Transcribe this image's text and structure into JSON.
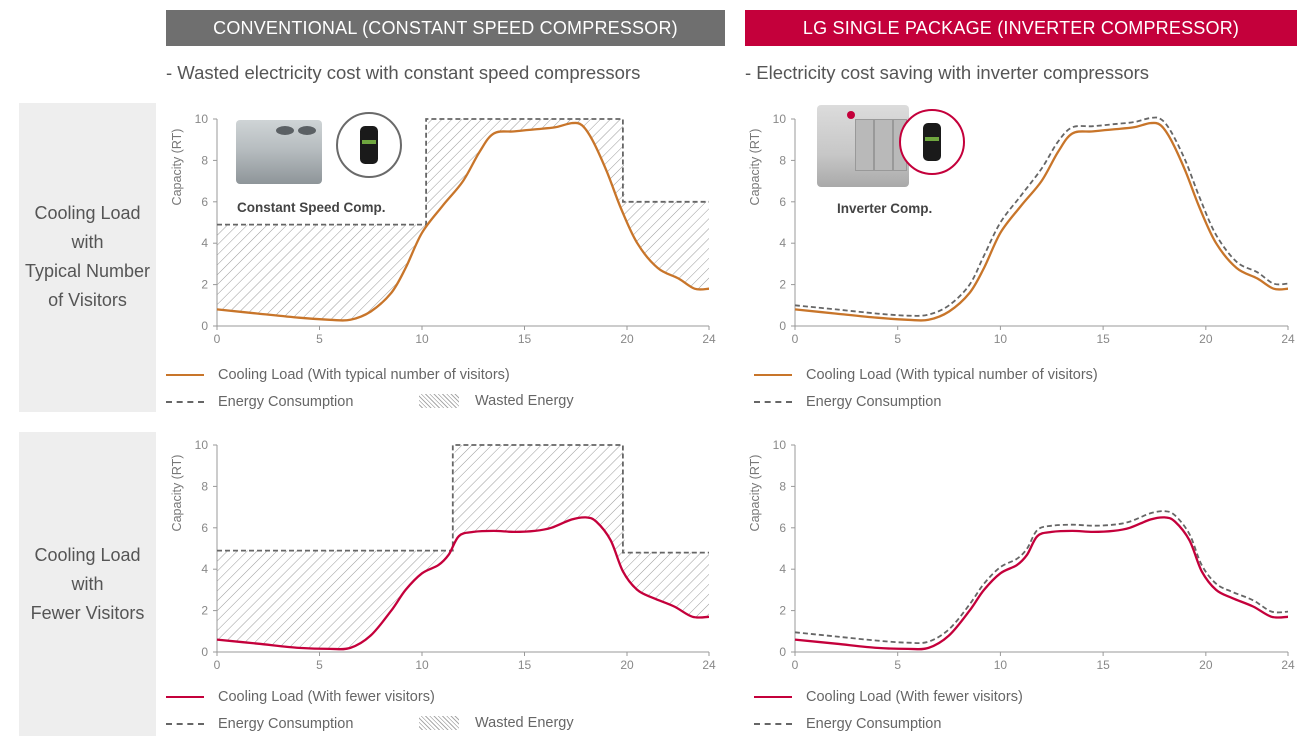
{
  "headers": {
    "conventional": "CONVENTIONAL (CONSTANT SPEED COMPRESSOR)",
    "lg": "LG SINGLE PACKAGE (INVERTER COMPRESSOR)"
  },
  "subtitles": {
    "conventional": "- Wasted electricity cost with constant speed compressors",
    "lg": "- Electricity cost saving with inverter compressors"
  },
  "rows": [
    {
      "label_lines": [
        "Cooling Load",
        "with",
        "Typical Number",
        "of Visitors"
      ]
    },
    {
      "label_lines": [
        "Cooling Load",
        "with",
        "Fewer Visitors"
      ]
    }
  ],
  "insets": {
    "conventional_label": "Constant Speed Comp.",
    "lg_label": "Inverter Comp."
  },
  "legends": {
    "typical_load": "Cooling Load (With typical number of visitors)",
    "fewer_load": "Cooling Load (With fewer visitors)",
    "energy": "Energy Consumption",
    "wasted": "Wasted Energy"
  },
  "colors": {
    "typical_load": "#c8752a",
    "fewer_load": "#c4003b",
    "energy": "#666666",
    "header_conv": "#6f6f6f",
    "header_lg": "#c4003b"
  },
  "chart_data": [
    {
      "type": "line",
      "ylabel": "Capacity (RT)",
      "xlim": [
        0,
        24
      ],
      "ylim": [
        0,
        10
      ],
      "xticks": [
        0,
        5,
        10,
        15,
        20,
        24
      ],
      "yticks": [
        0,
        2,
        4,
        6,
        8,
        10
      ],
      "series": [
        {
          "name": "Cooling Load (With typical number of visitors)",
          "style": "solid",
          "color": "#c8752a",
          "x": [
            0,
            2,
            4,
            5.5,
            6.5,
            7.5,
            8.5,
            9.2,
            10,
            11,
            12,
            12.8,
            13.5,
            14.5,
            15.5,
            16.5,
            17.3,
            17.8,
            18.3,
            19,
            19.7,
            20.5,
            21.5,
            22.5,
            23.3,
            24
          ],
          "y": [
            0.8,
            0.6,
            0.4,
            0.3,
            0.3,
            0.7,
            1.6,
            2.8,
            4.5,
            5.8,
            7.0,
            8.4,
            9.3,
            9.4,
            9.5,
            9.6,
            9.8,
            9.7,
            9.0,
            7.5,
            5.7,
            4.0,
            2.8,
            2.3,
            1.8,
            1.8
          ]
        },
        {
          "name": "Energy Consumption",
          "style": "dashed",
          "color": "#666666",
          "x": [
            0,
            10.2,
            10.2,
            19.8,
            19.8,
            24
          ],
          "y": [
            4.9,
            4.9,
            10,
            10,
            6,
            6
          ]
        }
      ],
      "hatched_area": "Wasted Energy"
    },
    {
      "type": "line",
      "ylabel": "Capacity (RT)",
      "xlim": [
        0,
        24
      ],
      "ylim": [
        0,
        10
      ],
      "xticks": [
        0,
        5,
        10,
        15,
        20,
        24
      ],
      "yticks": [
        0,
        2,
        4,
        6,
        8,
        10
      ],
      "series": [
        {
          "name": "Cooling Load (With typical number of visitors)",
          "style": "solid",
          "color": "#c8752a",
          "x": [
            0,
            2,
            4,
            5.5,
            6.5,
            7.5,
            8.5,
            9.2,
            10,
            11,
            12,
            12.8,
            13.5,
            14.5,
            15.5,
            16.5,
            17.3,
            17.8,
            18.3,
            19,
            19.7,
            20.5,
            21.5,
            22.5,
            23.3,
            24
          ],
          "y": [
            0.8,
            0.6,
            0.4,
            0.3,
            0.3,
            0.7,
            1.6,
            2.8,
            4.5,
            5.8,
            7.0,
            8.4,
            9.3,
            9.4,
            9.5,
            9.6,
            9.8,
            9.7,
            9.0,
            7.5,
            5.7,
            4.0,
            2.8,
            2.3,
            1.8,
            1.8
          ]
        },
        {
          "name": "Energy Consumption",
          "style": "dashed",
          "color": "#666666",
          "x": [
            0,
            2,
            4,
            5.5,
            6.5,
            7.5,
            8.5,
            9.2,
            10,
            11,
            12,
            12.8,
            13.5,
            14.5,
            15.5,
            16.5,
            17.3,
            17.8,
            18.3,
            19,
            19.7,
            20.5,
            21.5,
            22.5,
            23.3,
            24
          ],
          "y": [
            1.0,
            0.8,
            0.6,
            0.5,
            0.55,
            1.0,
            2.0,
            3.4,
            5.0,
            6.3,
            7.6,
            8.9,
            9.6,
            9.65,
            9.75,
            9.85,
            10.05,
            10.0,
            9.4,
            8.0,
            6.2,
            4.4,
            3.1,
            2.6,
            2.05,
            2.05
          ]
        }
      ]
    },
    {
      "type": "line",
      "ylabel": "Capacity (RT)",
      "xlim": [
        0,
        24
      ],
      "ylim": [
        0,
        10
      ],
      "xticks": [
        0,
        5,
        10,
        15,
        20,
        24
      ],
      "yticks": [
        0,
        2,
        4,
        6,
        8,
        10
      ],
      "series": [
        {
          "name": "Cooling Load (With fewer visitors)",
          "style": "solid",
          "color": "#c4003b",
          "x": [
            0,
            2,
            4,
            5.5,
            6.5,
            7.5,
            8.5,
            9.2,
            10,
            10.8,
            11.3,
            11.8,
            12.5,
            13.5,
            14.5,
            15.5,
            16.3,
            17.3,
            18,
            18.5,
            19.2,
            19.8,
            20.5,
            21.3,
            22.3,
            23.2,
            24
          ],
          "y": [
            0.6,
            0.4,
            0.2,
            0.15,
            0.2,
            0.8,
            2.0,
            3.0,
            3.8,
            4.2,
            4.7,
            5.6,
            5.8,
            5.85,
            5.8,
            5.85,
            6.0,
            6.4,
            6.5,
            6.3,
            5.4,
            3.9,
            3.0,
            2.6,
            2.2,
            1.7,
            1.7
          ]
        },
        {
          "name": "Energy Consumption",
          "style": "dashed",
          "color": "#666666",
          "x": [
            0,
            11.5,
            11.5,
            19.8,
            19.8,
            24
          ],
          "y": [
            4.9,
            4.9,
            10,
            10,
            4.8,
            4.8
          ]
        }
      ],
      "hatched_area": "Wasted Energy"
    },
    {
      "type": "line",
      "ylabel": "Capacity (RT)",
      "xlim": [
        0,
        24
      ],
      "ylim": [
        0,
        10
      ],
      "xticks": [
        0,
        5,
        10,
        15,
        20,
        24
      ],
      "yticks": [
        0,
        2,
        4,
        6,
        8,
        10
      ],
      "series": [
        {
          "name": "Cooling Load (With fewer visitors)",
          "style": "solid",
          "color": "#c4003b",
          "x": [
            0,
            2,
            4,
            5.5,
            6.5,
            7.5,
            8.5,
            9.2,
            10,
            10.8,
            11.3,
            11.8,
            12.5,
            13.5,
            14.5,
            15.5,
            16.3,
            17.3,
            18,
            18.5,
            19.2,
            19.8,
            20.5,
            21.3,
            22.3,
            23.2,
            24
          ],
          "y": [
            0.6,
            0.4,
            0.2,
            0.15,
            0.2,
            0.8,
            2.0,
            3.0,
            3.8,
            4.2,
            4.7,
            5.6,
            5.8,
            5.85,
            5.8,
            5.85,
            6.0,
            6.4,
            6.5,
            6.3,
            5.4,
            3.9,
            3.0,
            2.6,
            2.2,
            1.7,
            1.7
          ]
        },
        {
          "name": "Energy Consumption",
          "style": "dashed",
          "color": "#666666",
          "x": [
            0,
            2,
            4,
            5.5,
            6.5,
            7.5,
            8.5,
            9.2,
            10,
            10.8,
            11.3,
            11.8,
            12.5,
            13.5,
            14.5,
            15.5,
            16.3,
            17.3,
            18,
            18.5,
            19.2,
            19.8,
            20.5,
            21.3,
            22.3,
            23.2,
            24
          ],
          "y": [
            0.95,
            0.75,
            0.55,
            0.45,
            0.5,
            1.1,
            2.3,
            3.3,
            4.1,
            4.5,
            5.0,
            5.9,
            6.1,
            6.15,
            6.1,
            6.15,
            6.3,
            6.7,
            6.8,
            6.6,
            5.7,
            4.2,
            3.3,
            2.9,
            2.5,
            1.95,
            1.95
          ]
        }
      ]
    }
  ]
}
